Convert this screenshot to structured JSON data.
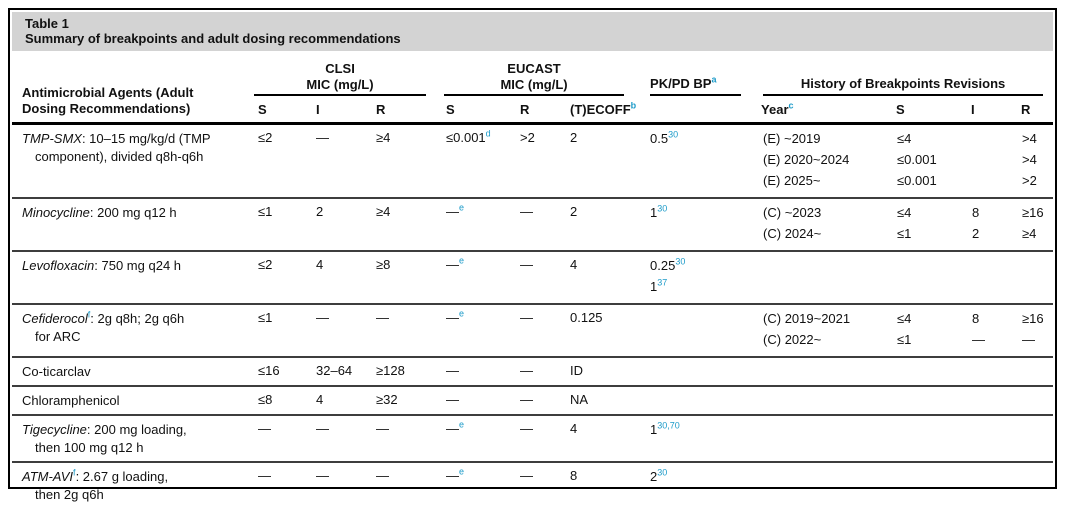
{
  "colors": {
    "footnote_accent": "#1d9bc9",
    "title_bar_bg": "#d3d3d3",
    "border": "#000000"
  },
  "title": {
    "label": "Table 1",
    "subtitle": "Summary of breakpoints and adult dosing recommendations"
  },
  "header": {
    "agent_col": "Antimicrobial Agents (Adult Dosing Recommendations)",
    "groups": {
      "clsi_line1": "CLSI",
      "clsi_line2": "MIC (mg/L)",
      "eucast_line1": "EUCAST",
      "eucast_line2": "MIC (mg/L)",
      "pkpd": "PK/PD BP^{a}",
      "history": "History of Breakpoints Revisions"
    },
    "sub": {
      "clsi_s": "S",
      "clsi_i": "I",
      "clsi_r": "R",
      "eucast_s": "S",
      "eucast_r": "R",
      "ecoff": "(T)ECOFF^{b}",
      "year": "Year^{c}",
      "hist_s": "S",
      "hist_i": "I",
      "hist_r": "R"
    }
  },
  "rows": [
    {
      "agent_lines": [
        "*TMP-SMX*: 10–15 mg/kg/d (TMP",
        "component), divided q8h-q6h"
      ],
      "clsi_s": "≤2",
      "clsi_i": "—",
      "clsi_r": "≥4",
      "eucast_s": "≤0.001^{d}",
      "eucast_r": ">2",
      "ecoff": "2",
      "pkpd": [
        "0.5^{30}"
      ],
      "history": [
        {
          "year": "(E) ~2019",
          "s": "≤4",
          "i": "",
          "r": ">4"
        },
        {
          "year": "(E) 2020~2024",
          "s": "≤0.001",
          "i": "",
          "r": ">4"
        },
        {
          "year": "(E) 2025~",
          "s": "≤0.001",
          "i": "",
          "r": ">2"
        }
      ]
    },
    {
      "agent_lines": [
        "*Minocycline*: 200 mg q12 h"
      ],
      "clsi_s": "≤1",
      "clsi_i": "2",
      "clsi_r": "≥4",
      "eucast_s": "—^{e}",
      "eucast_r": "—",
      "ecoff": "2",
      "pkpd": [
        "1^{30}"
      ],
      "history": [
        {
          "year": "(C) ~2023",
          "s": "≤4",
          "i": "8",
          "r": "≥16"
        },
        {
          "year": "(C) 2024~",
          "s": "≤1",
          "i": "2",
          "r": "≥4"
        }
      ]
    },
    {
      "agent_lines": [
        "*Levofloxacin*: 750 mg q24 h"
      ],
      "clsi_s": "≤2",
      "clsi_i": "4",
      "clsi_r": "≥8",
      "eucast_s": "—^{e}",
      "eucast_r": "—",
      "ecoff": "4",
      "pkpd": [
        "0.25^{30}",
        "1^{37}"
      ],
      "history": []
    },
    {
      "agent_lines": [
        "*Cefiderocol*^{f}: 2g q8h; 2g q6h",
        "for ARC"
      ],
      "clsi_s": "≤1",
      "clsi_i": "—",
      "clsi_r": "—",
      "eucast_s": "—^{e}",
      "eucast_r": "—",
      "ecoff": "0.125",
      "pkpd": [],
      "history": [
        {
          "year": "(C) 2019~2021",
          "s": "≤4",
          "i": "8",
          "r": "≥16"
        },
        {
          "year": "(C) 2022~",
          "s": "≤1",
          "i": "—",
          "r": "—"
        }
      ]
    },
    {
      "agent_lines": [
        "Co-ticarclav"
      ],
      "clsi_s": "≤16",
      "clsi_i": "32–64",
      "clsi_r": "≥128",
      "eucast_s": "—",
      "eucast_r": "—",
      "ecoff": "ID",
      "pkpd": [],
      "history": []
    },
    {
      "agent_lines": [
        "Chloramphenicol"
      ],
      "clsi_s": "≤8",
      "clsi_i": "4",
      "clsi_r": "≥32",
      "eucast_s": "—",
      "eucast_r": "—",
      "ecoff": "NA",
      "pkpd": [],
      "history": []
    },
    {
      "agent_lines": [
        "*Tigecycline*: 200 mg loading,",
        "then 100 mg q12 h"
      ],
      "clsi_s": "—",
      "clsi_i": "—",
      "clsi_r": "—",
      "eucast_s": "—^{e}",
      "eucast_r": "—",
      "ecoff": "4",
      "pkpd": [
        "1^{30,70}"
      ],
      "history": []
    },
    {
      "agent_lines": [
        "*ATM-AVI*^{f}: 2.67 g loading,",
        "then 2g q6h"
      ],
      "clsi_s": "—",
      "clsi_i": "—",
      "clsi_r": "—",
      "eucast_s": "—^{e}",
      "eucast_r": "—",
      "ecoff": "8",
      "pkpd": [
        "2^{30}"
      ],
      "history": []
    }
  ]
}
